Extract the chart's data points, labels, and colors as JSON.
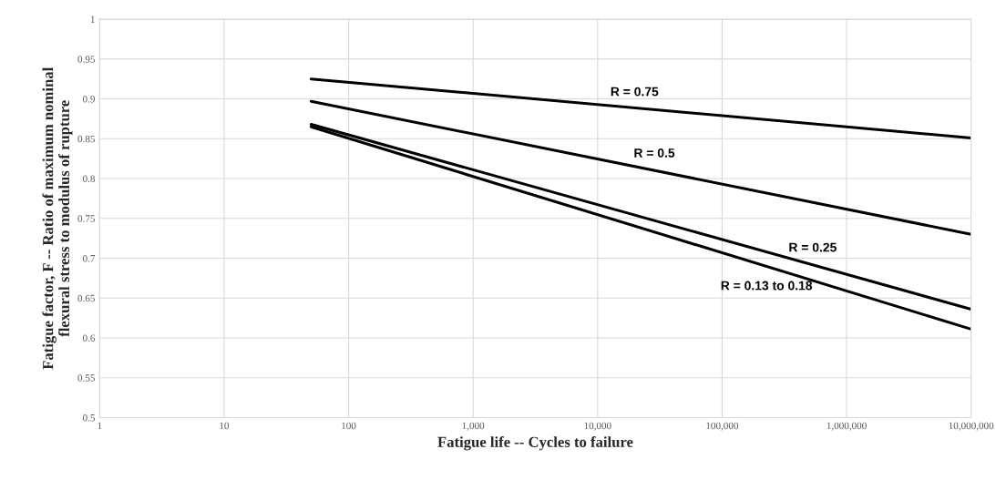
{
  "chart_data": {
    "type": "line",
    "xlabel": "Fatigue life -- Cycles to failure",
    "ylabel": "Fatigue factor, F -- Ratio of maximum nominal\nflexural stress to modulus of rupture",
    "log": "x",
    "grid": true,
    "marker": "none",
    "line_style": "solid",
    "x": [
      50,
      10000000
    ],
    "series": [
      {
        "name": "R = 0.75",
        "color": "#000000",
        "values": [
          0.925,
          0.851
        ]
      },
      {
        "name": "R = 0.5",
        "color": "#000000",
        "values": [
          0.897,
          0.73
        ]
      },
      {
        "name": "R = 0.25",
        "color": "#000000",
        "values": [
          0.868,
          0.636
        ]
      },
      {
        "name": "R = 0.13 to 0.18",
        "color": "#000000",
        "values": [
          0.865,
          0.611
        ]
      }
    ],
    "xlim": [
      1,
      10000000
    ],
    "xticks": [
      1,
      10,
      100,
      {
        "value": 1000,
        "label": "1,000"
      },
      {
        "value": 10000,
        "label": "10,000"
      },
      {
        "value": 100000,
        "label": "100,000"
      },
      {
        "value": 1000000,
        "label": "1,000,000"
      },
      {
        "value": 10000000,
        "label": "10,000,000"
      }
    ],
    "ylim": [
      0.5,
      1
    ],
    "yticks": [
      0.5,
      0.55,
      0.6,
      0.65,
      0.7,
      0.75,
      0.8,
      0.85,
      0.9,
      0.95,
      1
    ]
  }
}
